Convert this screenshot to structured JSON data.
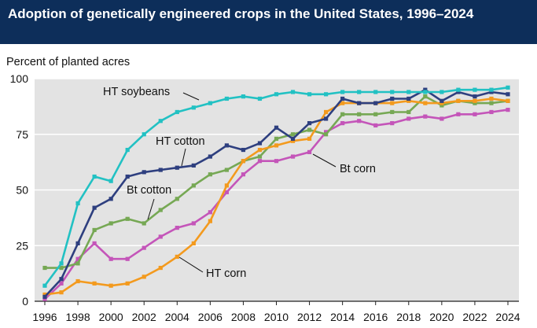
{
  "title": "Adoption of genetically engineered crops in the United States, 1996–2024",
  "colors": {
    "title_bar": "#0d2e5a",
    "plot_background": "#e3e3e3",
    "grid": "#ffffff"
  },
  "chart_data": {
    "type": "line",
    "title": "Adoption of genetically engineered crops in the United States, 1996–2024",
    "xlabel": "",
    "ylabel": "Percent of planted acres",
    "xlim": [
      1996,
      2024
    ],
    "ylim": [
      0,
      100
    ],
    "x_ticks": [
      1996,
      1998,
      2000,
      2002,
      2004,
      2006,
      2008,
      2010,
      2012,
      2014,
      2016,
      2018,
      2020,
      2022,
      2024
    ],
    "y_ticks": [
      0,
      25,
      50,
      75,
      100
    ],
    "grid": true,
    "legend": "labels placed directly on lines",
    "x": [
      1996,
      1997,
      1998,
      1999,
      2000,
      2001,
      2002,
      2003,
      2004,
      2005,
      2006,
      2007,
      2008,
      2009,
      2010,
      2011,
      2012,
      2013,
      2014,
      2015,
      2016,
      2017,
      2018,
      2019,
      2020,
      2021,
      2022,
      2023,
      2024
    ],
    "series": [
      {
        "name": "HT soybeans",
        "color": "#22c1c3",
        "values": [
          7,
          17,
          44,
          56,
          54,
          68,
          75,
          81,
          85,
          87,
          89,
          91,
          92,
          91,
          93,
          94,
          93,
          93,
          94,
          94,
          94,
          94,
          94,
          94,
          94,
          95,
          95,
          95,
          96
        ]
      },
      {
        "name": "HT cotton",
        "color": "#2e3f7f",
        "values": [
          2,
          10,
          26,
          42,
          46,
          56,
          58,
          59,
          60,
          61,
          65,
          70,
          68,
          71,
          78,
          73,
          80,
          82,
          91,
          89,
          89,
          91,
          91,
          95,
          90,
          94,
          92,
          94,
          93
        ]
      },
      {
        "name": "Bt cotton",
        "color": "#76a854",
        "values": [
          15,
          15,
          17,
          32,
          35,
          37,
          35,
          41,
          46,
          52,
          57,
          59,
          63,
          65,
          73,
          75,
          77,
          75,
          84,
          84,
          84,
          85,
          85,
          92,
          88,
          90,
          89,
          89,
          90
        ]
      },
      {
        "name": "Bt corn",
        "color": "#c455b9",
        "values": [
          1,
          8,
          19,
          26,
          19,
          19,
          24,
          29,
          33,
          35,
          40,
          49,
          57,
          63,
          63,
          65,
          67,
          76,
          80,
          81,
          79,
          80,
          82,
          83,
          82,
          84,
          84,
          85,
          86
        ]
      },
      {
        "name": "HT corn",
        "color": "#f39a1e",
        "values": [
          3,
          4,
          9,
          8,
          7,
          8,
          11,
          15,
          20,
          26,
          36,
          52,
          63,
          68,
          70,
          72,
          73,
          85,
          89,
          89,
          89,
          89,
          90,
          89,
          89,
          90,
          90,
          91,
          90
        ]
      }
    ],
    "annotations": [
      "HT soybeans",
      "HT cotton",
      "Bt cotton",
      "Bt corn",
      "HT corn"
    ]
  }
}
